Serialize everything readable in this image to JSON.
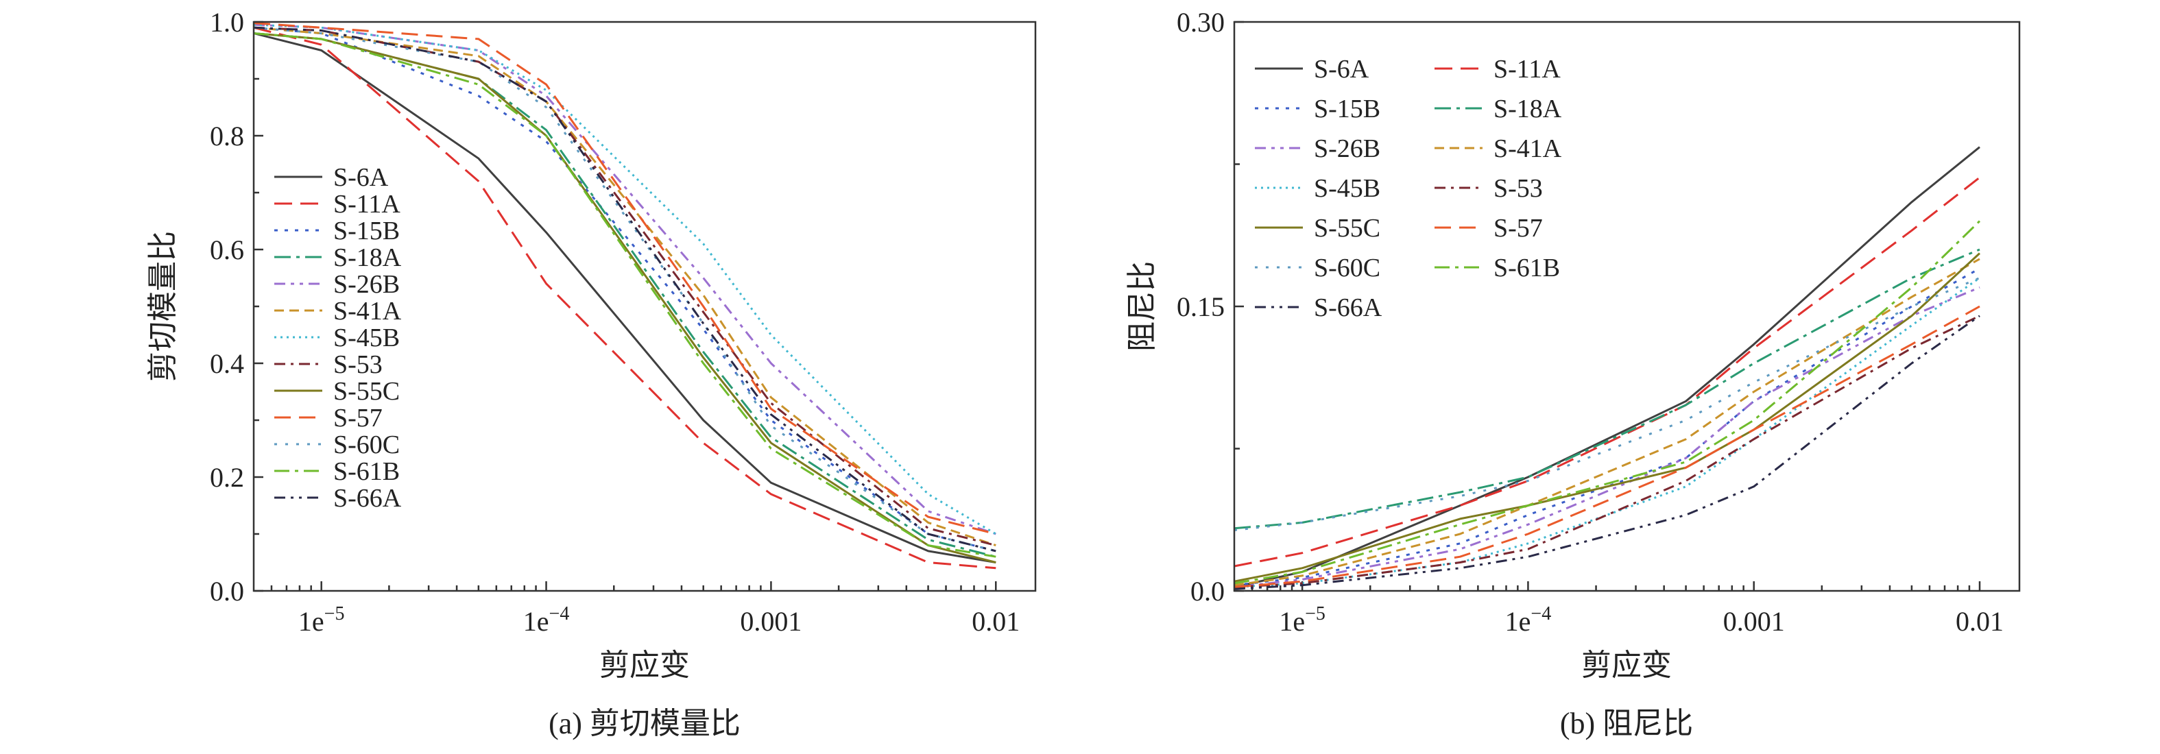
{
  "strain_ticks": [
    {
      "v": 1e-05,
      "label": "1e",
      "sup": "−5"
    },
    {
      "v": 0.0001,
      "label": "1e",
      "sup": "−4"
    },
    {
      "v": 0.001,
      "label": "0.001",
      "sup": ""
    },
    {
      "v": 0.01,
      "label": "0.01",
      "sup": ""
    }
  ],
  "series_styles": [
    {
      "name": "S-6A",
      "color": "#404040",
      "dash": ""
    },
    {
      "name": "S-11A",
      "color": "#e0312f",
      "dash": "26 12"
    },
    {
      "name": "S-15B",
      "color": "#3a5ec8",
      "dash": "5 10"
    },
    {
      "name": "S-18A",
      "color": "#2a9a72",
      "dash": "24 8 5 8"
    },
    {
      "name": "S-26B",
      "color": "#9b6fd0",
      "dash": "16 8 5 8 5 8"
    },
    {
      "name": "S-41A",
      "color": "#c9922a",
      "dash": "14 8"
    },
    {
      "name": "S-45B",
      "color": "#41b8d0",
      "dash": "3 6"
    },
    {
      "name": "S-53",
      "color": "#7a2830",
      "dash": "16 8 4 8"
    },
    {
      "name": "S-55C",
      "color": "#7e7a1e",
      "dash": ""
    },
    {
      "name": "S-57",
      "color": "#ea5a2a",
      "dash": "24 12"
    },
    {
      "name": "S-60C",
      "color": "#5e9ac0",
      "dash": "4 12"
    },
    {
      "name": "S-61B",
      "color": "#6fbb2c",
      "dash": "22 8 5 8"
    },
    {
      "name": "S-66A",
      "color": "#2a2a48",
      "dash": "16 8 4 8 4 8"
    }
  ],
  "chart_data": [
    {
      "type": "line",
      "caption": "(a) 剪切模量比",
      "xlabel": "剪应变",
      "ylabel": "剪切模量比",
      "xscale": "log",
      "xlim": [
        5e-06,
        0.015
      ],
      "ylim": [
        0,
        1.0
      ],
      "yticks": [
        "0.0",
        "0.2",
        "0.4",
        "0.6",
        "0.8",
        "1.0"
      ],
      "legend_placement": "left",
      "x": [
        5e-06,
        1e-05,
        5e-05,
        0.0001,
        0.0005,
        0.001,
        0.005,
        0.01
      ],
      "series": [
        {
          "name": "S-6A",
          "values": [
            0.98,
            0.95,
            0.76,
            0.63,
            0.3,
            0.19,
            0.07,
            0.05
          ]
        },
        {
          "name": "S-11A",
          "values": [
            0.99,
            0.96,
            0.72,
            0.54,
            0.26,
            0.17,
            0.05,
            0.04
          ]
        },
        {
          "name": "S-15B",
          "values": [
            0.99,
            0.98,
            0.87,
            0.79,
            0.46,
            0.3,
            0.1,
            0.07
          ]
        },
        {
          "name": "S-18A",
          "values": [
            0.98,
            0.97,
            0.9,
            0.81,
            0.42,
            0.27,
            0.09,
            0.06
          ]
        },
        {
          "name": "S-26B",
          "values": [
            0.995,
            0.99,
            0.95,
            0.87,
            0.55,
            0.4,
            0.14,
            0.1
          ]
        },
        {
          "name": "S-41A",
          "values": [
            0.99,
            0.98,
            0.94,
            0.86,
            0.52,
            0.34,
            0.12,
            0.08
          ]
        },
        {
          "name": "S-45B",
          "values": [
            0.995,
            0.99,
            0.95,
            0.88,
            0.61,
            0.45,
            0.17,
            0.1
          ]
        },
        {
          "name": "S-53",
          "values": [
            0.99,
            0.985,
            0.93,
            0.86,
            0.49,
            0.33,
            0.11,
            0.08
          ]
        },
        {
          "name": "S-55C",
          "values": [
            0.98,
            0.97,
            0.9,
            0.8,
            0.41,
            0.26,
            0.08,
            0.05
          ]
        },
        {
          "name": "S-57",
          "values": [
            0.998,
            0.99,
            0.97,
            0.89,
            0.5,
            0.32,
            0.13,
            0.1
          ]
        },
        {
          "name": "S-60C",
          "values": [
            0.99,
            0.98,
            0.93,
            0.85,
            0.47,
            0.29,
            0.1,
            0.07
          ]
        },
        {
          "name": "S-61B",
          "values": [
            0.98,
            0.97,
            0.89,
            0.8,
            0.4,
            0.25,
            0.08,
            0.06
          ]
        },
        {
          "name": "S-66A",
          "values": [
            0.99,
            0.985,
            0.93,
            0.86,
            0.47,
            0.31,
            0.1,
            0.07
          ]
        }
      ]
    },
    {
      "type": "line",
      "caption": "(b) 阻尼比",
      "xlabel": "剪应变",
      "ylabel": "阻尼比",
      "xscale": "log",
      "xlim": [
        5e-06,
        0.015
      ],
      "ylim": [
        0,
        0.3
      ],
      "yticks": [
        "0.0",
        "0.15",
        "0.30"
      ],
      "legend_placement": "top-left",
      "x": [
        5e-06,
        1e-05,
        5e-05,
        0.0001,
        0.0005,
        0.001,
        0.005,
        0.01
      ],
      "series": [
        {
          "name": "S-6A",
          "values": [
            0.002,
            0.01,
            0.045,
            0.06,
            0.1,
            0.13,
            0.205,
            0.234
          ]
        },
        {
          "name": "S-11A",
          "values": [
            0.013,
            0.02,
            0.045,
            0.058,
            0.098,
            0.128,
            0.19,
            0.218
          ]
        },
        {
          "name": "S-15B",
          "values": [
            0.003,
            0.007,
            0.025,
            0.04,
            0.07,
            0.1,
            0.15,
            0.17
          ]
        },
        {
          "name": "S-18A",
          "values": [
            0.033,
            0.036,
            0.052,
            0.06,
            0.098,
            0.12,
            0.165,
            0.18
          ]
        },
        {
          "name": "S-26B",
          "values": [
            0.002,
            0.006,
            0.022,
            0.035,
            0.07,
            0.1,
            0.145,
            0.16
          ]
        },
        {
          "name": "S-41A",
          "values": [
            0.003,
            0.008,
            0.03,
            0.045,
            0.08,
            0.105,
            0.155,
            0.175
          ]
        },
        {
          "name": "S-45B",
          "values": [
            0.002,
            0.004,
            0.015,
            0.025,
            0.055,
            0.08,
            0.14,
            0.165
          ]
        },
        {
          "name": "S-53",
          "values": [
            0.002,
            0.004,
            0.015,
            0.022,
            0.058,
            0.08,
            0.128,
            0.145
          ]
        },
        {
          "name": "S-55C",
          "values": [
            0.005,
            0.012,
            0.038,
            0.045,
            0.065,
            0.085,
            0.145,
            0.178
          ]
        },
        {
          "name": "S-57",
          "values": [
            0.002,
            0.005,
            0.018,
            0.03,
            0.065,
            0.085,
            0.13,
            0.15
          ]
        },
        {
          "name": "S-60C",
          "values": [
            0.032,
            0.036,
            0.05,
            0.058,
            0.09,
            0.11,
            0.15,
            0.165
          ]
        },
        {
          "name": "S-61B",
          "values": [
            0.004,
            0.01,
            0.035,
            0.045,
            0.068,
            0.09,
            0.16,
            0.195
          ]
        },
        {
          "name": "S-66A",
          "values": [
            0.001,
            0.003,
            0.012,
            0.018,
            0.04,
            0.055,
            0.12,
            0.145
          ]
        }
      ]
    }
  ]
}
